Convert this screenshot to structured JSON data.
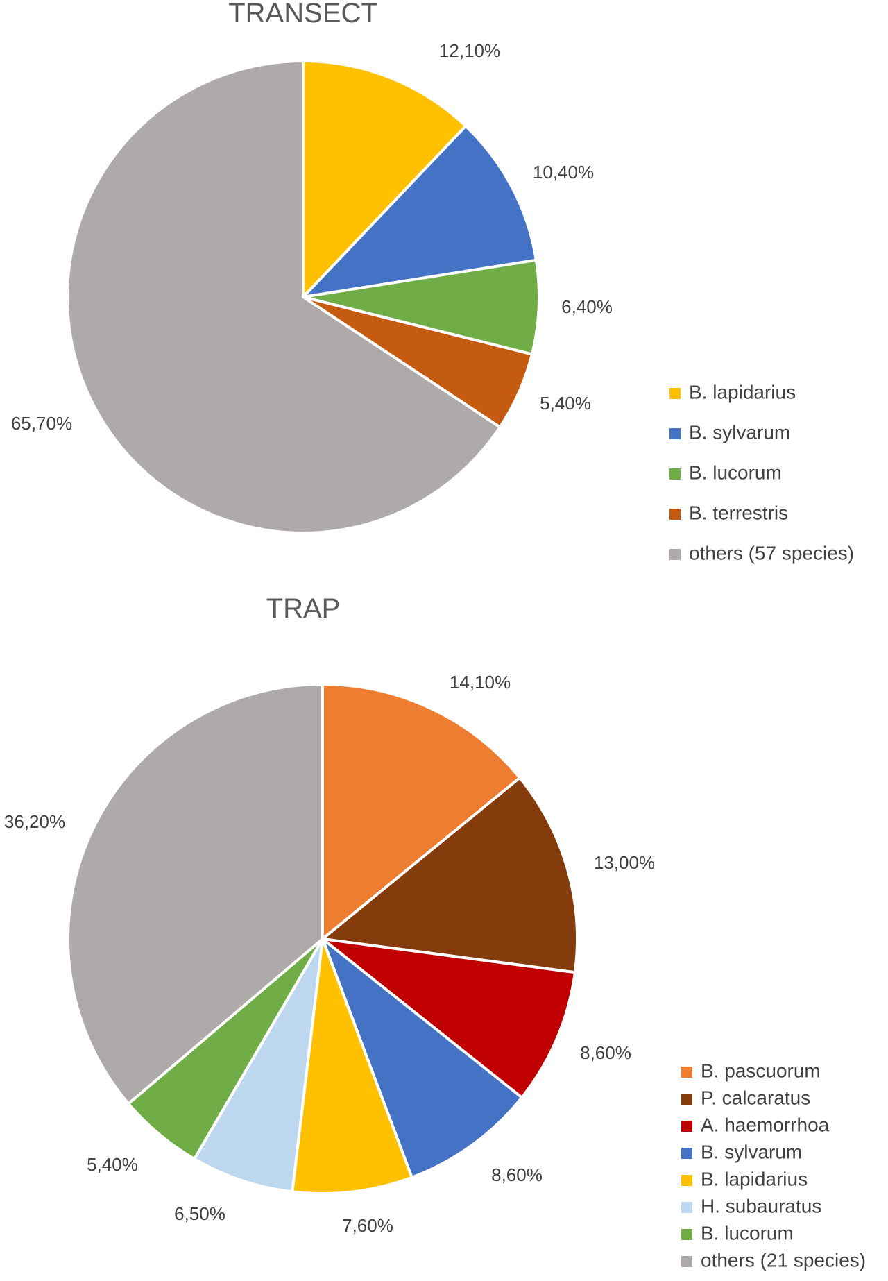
{
  "chart_data": [
    {
      "type": "pie",
      "title": "TRANSECT",
      "legend_position": "right",
      "slices": [
        {
          "label": "B. lapidarius",
          "value": 12.1,
          "display": "12,10%",
          "color": "#FFC000"
        },
        {
          "label": "B. sylvarum",
          "value": 10.4,
          "display": "10,40%",
          "color": "#4472C4"
        },
        {
          "label": "B. lucorum",
          "value": 6.4,
          "display": "6,40%",
          "color": "#70AD47"
        },
        {
          "label": "B. terrestris",
          "value": 5.4,
          "display": "5,40%",
          "color": "#C55A11"
        },
        {
          "label": "others (57 species)",
          "value": 65.7,
          "display": "65,70%",
          "color": "#AEAAAA"
        }
      ]
    },
    {
      "type": "pie",
      "title": "TRAP",
      "legend_position": "bottom-right",
      "slices": [
        {
          "label": "B. pascuorum",
          "value": 14.1,
          "display": "14,10%",
          "color": "#ED7D31"
        },
        {
          "label": "P. calcaratus",
          "value": 13.0,
          "display": "13,00%",
          "color": "#843C0C"
        },
        {
          "label": "A. haemorrhoa",
          "value": 8.6,
          "display": "8,60%",
          "color": "#C00000"
        },
        {
          "label": "B. sylvarum",
          "value": 8.6,
          "display": "8,60%",
          "color": "#4472C4"
        },
        {
          "label": "B. lapidarius",
          "value": 7.6,
          "display": "7,60%",
          "color": "#FFC000"
        },
        {
          "label": "H. subauratus",
          "value": 6.5,
          "display": "6,50%",
          "color": "#BDD7EE"
        },
        {
          "label": "B. lucorum",
          "value": 5.4,
          "display": "5,40%",
          "color": "#70AD47"
        },
        {
          "label": "others (21 species)",
          "value": 36.2,
          "display": "36,20%",
          "color": "#AEAAAA"
        }
      ]
    }
  ]
}
